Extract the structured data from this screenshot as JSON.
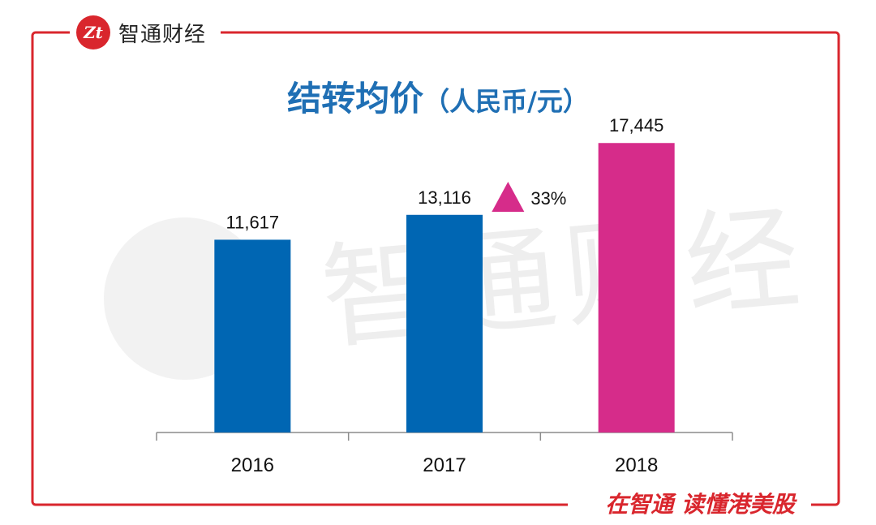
{
  "brand": {
    "logo_text": "Zt",
    "name": "智通财经"
  },
  "watermark": {
    "text": "智通财经"
  },
  "footer": {
    "slogan": "在智通  读懂港美股"
  },
  "colors": {
    "frame": "#d9262d",
    "bar_default": "#0066b3",
    "bar_highlight": "#d62c8a",
    "title": "#1f6fb4",
    "axis": "#8c8c8c"
  },
  "chart_data": {
    "type": "bar",
    "title": "结转均价",
    "title_unit": "（人民币/元）",
    "categories": [
      "2016",
      "2017",
      "2018"
    ],
    "values": [
      11617,
      13116,
      17445
    ],
    "value_labels": [
      "11,617",
      "13,116",
      "17,445"
    ],
    "highlight_index": 2,
    "growth_annotation": "33%",
    "ylim": [
      0,
      20000
    ],
    "grid": false,
    "legend": "none"
  }
}
